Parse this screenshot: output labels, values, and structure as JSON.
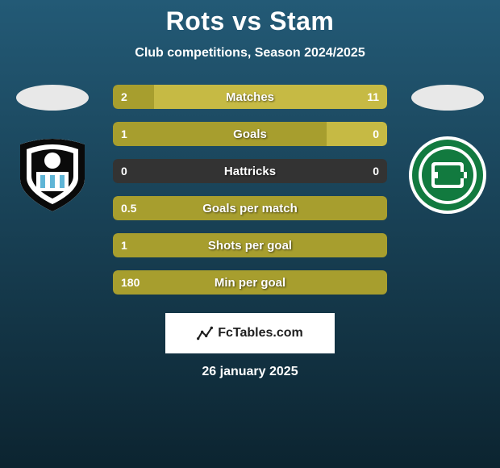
{
  "title": "Rots vs Stam",
  "subtitle": "Club competitions, Season 2024/2025",
  "colors": {
    "bg_top": "#235a76",
    "bg_bottom": "#0c2430",
    "primary_text": "#ffffff",
    "stat_track": "#333333",
    "bar_a": "#a79e2e",
    "bar_b": "#c6ba44",
    "val_text": "#ffffff",
    "player_oval": "#e8e8e8",
    "watermark_bg": "#ffffff",
    "watermark_text": "#1f1f1f"
  },
  "left_player": {
    "oval": true,
    "crest": "heracles"
  },
  "right_player": {
    "oval": true,
    "crest": "groningen"
  },
  "stats": [
    {
      "label": "Matches",
      "left_val": "2",
      "right_val": "11",
      "left_pct": 15,
      "right_pct": 85
    },
    {
      "label": "Goals",
      "left_val": "1",
      "right_val": "0",
      "left_pct": 78,
      "right_pct": 22
    },
    {
      "label": "Hattricks",
      "left_val": "0",
      "right_val": "0",
      "left_pct": 0,
      "right_pct": 0
    },
    {
      "label": "Goals per match",
      "left_val": "0.5",
      "right_val": "",
      "left_pct": 100,
      "right_pct": 0
    },
    {
      "label": "Shots per goal",
      "left_val": "1",
      "right_val": "",
      "left_pct": 100,
      "right_pct": 0
    },
    {
      "label": "Min per goal",
      "left_val": "180",
      "right_val": "",
      "left_pct": 100,
      "right_pct": 0
    }
  ],
  "watermark_text": "FcTables.com",
  "date": "26 january 2025"
}
